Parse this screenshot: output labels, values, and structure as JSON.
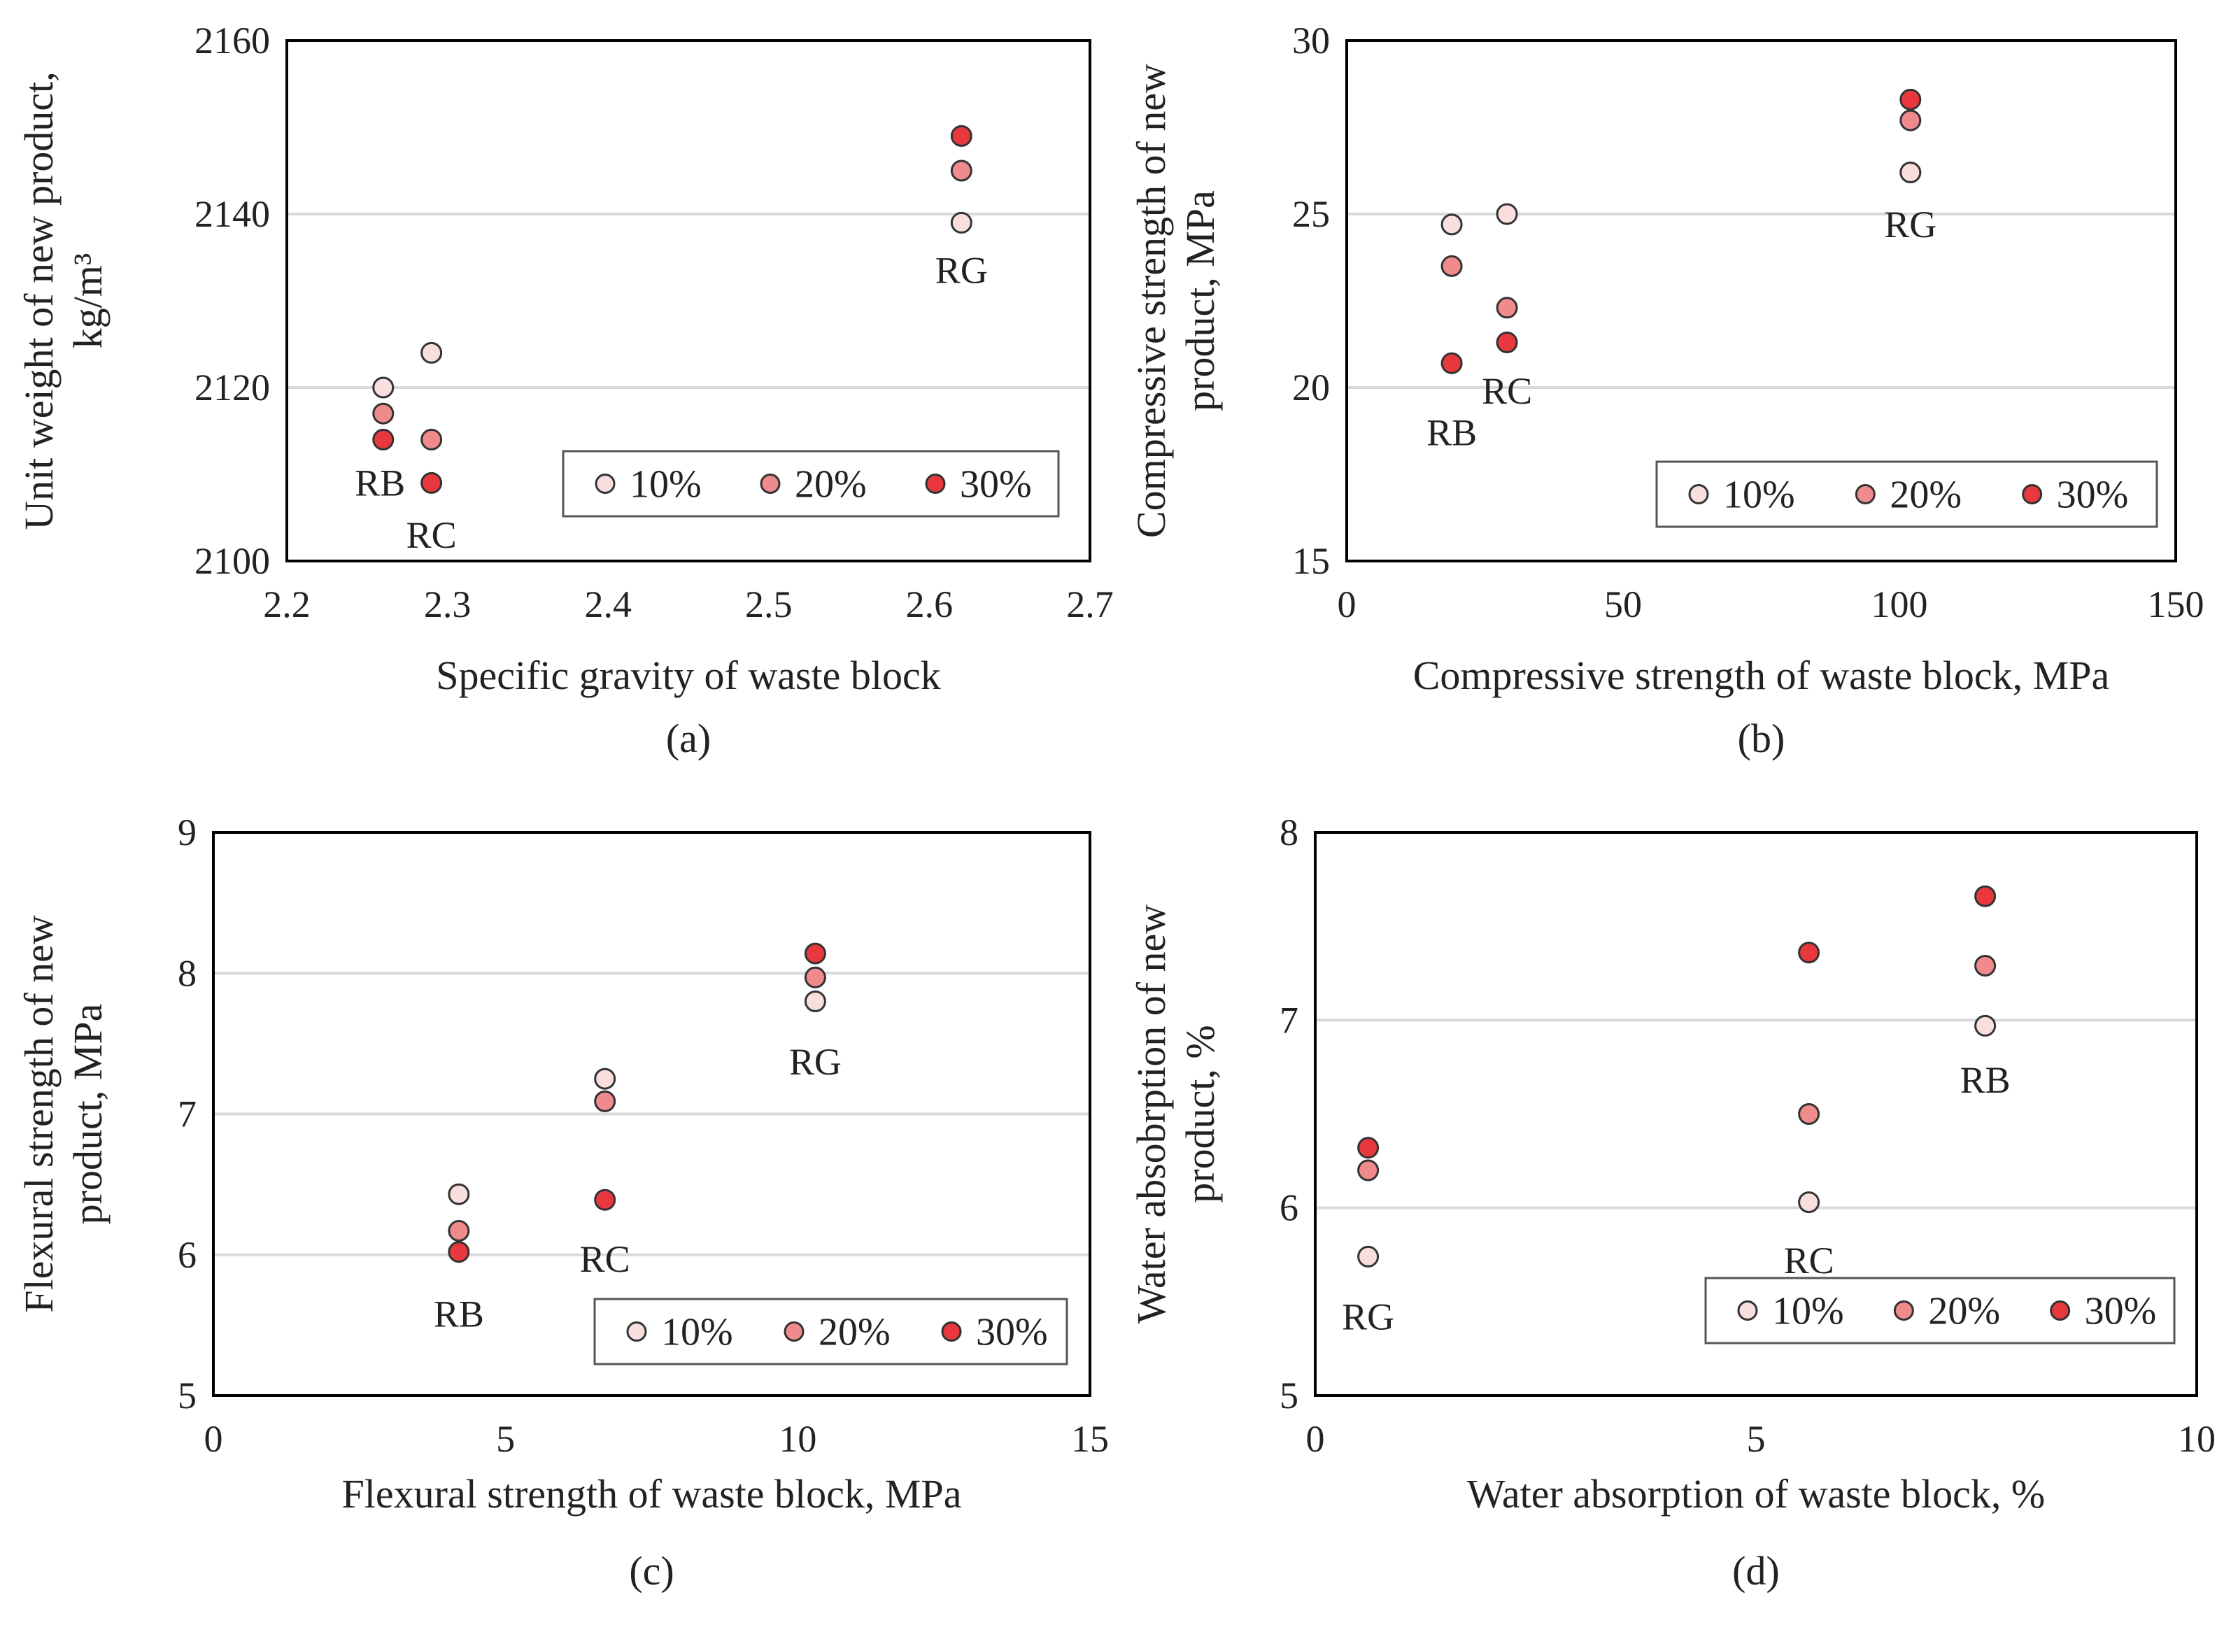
{
  "colors": {
    "10%": "#f9dede",
    "20%": "#ef8a8d",
    "30%": "#e8383d",
    "grid": "#d9d9d9",
    "frame": "#000000",
    "marker_edge": "#333333"
  },
  "chart_data": [
    {
      "type": "scatter",
      "caption": "(a)",
      "xlabel": "Specific gravity of waste block",
      "ylabel_lines": [
        "Unit weight of new product,",
        "kg/m³"
      ],
      "xlim": [
        2.2,
        2.7
      ],
      "ylim": [
        2100,
        2160
      ],
      "xticks": [
        2.2,
        2.3,
        2.4,
        2.5,
        2.6,
        2.7
      ],
      "xtick_labels": [
        "2.2",
        "2.3",
        "2.4",
        "2.5",
        "2.6",
        "2.7"
      ],
      "yticks": [
        2100,
        2120,
        2140,
        2160
      ],
      "ytick_labels": [
        "2100",
        "2120",
        "2140",
        "2160"
      ],
      "gridlines": [
        2120,
        2140
      ],
      "legend": {
        "position": "bottom-right",
        "entries": [
          "10%",
          "20%",
          "30%"
        ]
      },
      "series": [
        {
          "name": "10%",
          "points": [
            {
              "x": 2.26,
              "y": 2120
            },
            {
              "x": 2.29,
              "y": 2124
            },
            {
              "x": 2.62,
              "y": 2139
            }
          ]
        },
        {
          "name": "20%",
          "points": [
            {
              "x": 2.26,
              "y": 2117
            },
            {
              "x": 2.29,
              "y": 2114
            },
            {
              "x": 2.62,
              "y": 2145
            }
          ]
        },
        {
          "name": "30%",
          "points": [
            {
              "x": 2.26,
              "y": 2114
            },
            {
              "x": 2.29,
              "y": 2109
            },
            {
              "x": 2.62,
              "y": 2149
            }
          ]
        }
      ],
      "annotations": [
        {
          "text": "RB",
          "x": 2.258,
          "y": 2109
        },
        {
          "text": "RC",
          "x": 2.29,
          "y": 2103
        },
        {
          "text": "RG",
          "x": 2.62,
          "y": 2133.5
        }
      ]
    },
    {
      "type": "scatter",
      "caption": "(b)",
      "xlabel": "Compressive strength of waste block, MPa",
      "ylabel_lines": [
        "Compressive strength of new",
        "product, MPa"
      ],
      "xlim": [
        0,
        150
      ],
      "ylim": [
        15,
        30
      ],
      "xticks": [
        0,
        50,
        100,
        150
      ],
      "xtick_labels": [
        "0",
        "50",
        "100",
        "150"
      ],
      "yticks": [
        15,
        20,
        25,
        30
      ],
      "ytick_labels": [
        "15",
        "20",
        "25",
        "30"
      ],
      "gridlines": [
        20,
        25
      ],
      "legend": {
        "position": "bottom-right",
        "entries": [
          "10%",
          "20%",
          "30%"
        ]
      },
      "series": [
        {
          "name": "10%",
          "points": [
            {
              "x": 19,
              "y": 24.7
            },
            {
              "x": 29,
              "y": 25.0
            },
            {
              "x": 102,
              "y": 26.2
            }
          ]
        },
        {
          "name": "20%",
          "points": [
            {
              "x": 19,
              "y": 23.5
            },
            {
              "x": 29,
              "y": 22.3
            },
            {
              "x": 102,
              "y": 27.7
            }
          ]
        },
        {
          "name": "30%",
          "points": [
            {
              "x": 19,
              "y": 20.7
            },
            {
              "x": 29,
              "y": 21.3
            },
            {
              "x": 102,
              "y": 28.3
            }
          ]
        }
      ],
      "annotations": [
        {
          "text": "RB",
          "x": 19,
          "y": 18.7
        },
        {
          "text": "RC",
          "x": 29,
          "y": 19.9
        },
        {
          "text": "RG",
          "x": 102,
          "y": 24.7
        }
      ]
    },
    {
      "type": "scatter",
      "caption": "(c)",
      "xlabel": "Flexural strength of waste block, MPa",
      "ylabel_lines": [
        "Flexural strength of new",
        "product, MPa"
      ],
      "xlim": [
        0,
        15
      ],
      "ylim": [
        5,
        9
      ],
      "xticks": [
        0,
        5,
        10,
        15
      ],
      "xtick_labels": [
        "0",
        "5",
        "10",
        "15"
      ],
      "yticks": [
        5,
        6,
        7,
        8,
        9
      ],
      "ytick_labels": [
        "5",
        "6",
        "7",
        "8",
        "9"
      ],
      "gridlines": [
        6,
        7,
        8
      ],
      "legend": {
        "position": "bottom-right",
        "entries": [
          "10%",
          "20%",
          "30%"
        ]
      },
      "series": [
        {
          "name": "10%",
          "points": [
            {
              "x": 4.2,
              "y": 6.43
            },
            {
              "x": 6.7,
              "y": 7.25
            },
            {
              "x": 10.3,
              "y": 7.8
            }
          ]
        },
        {
          "name": "20%",
          "points": [
            {
              "x": 4.2,
              "y": 6.17
            },
            {
              "x": 6.7,
              "y": 7.09
            },
            {
              "x": 10.3,
              "y": 7.97
            }
          ]
        },
        {
          "name": "30%",
          "points": [
            {
              "x": 4.2,
              "y": 6.02
            },
            {
              "x": 6.7,
              "y": 6.39
            },
            {
              "x": 10.3,
              "y": 8.14
            }
          ]
        }
      ],
      "annotations": [
        {
          "text": "RB",
          "x": 4.2,
          "y": 5.58
        },
        {
          "text": "RC",
          "x": 6.7,
          "y": 5.97
        },
        {
          "text": "RG",
          "x": 10.3,
          "y": 7.37
        }
      ]
    },
    {
      "type": "scatter",
      "caption": "(d)",
      "xlabel": "Water absorption of waste block, %",
      "ylabel_lines": [
        "Water absobrption of new",
        "product, %"
      ],
      "xlim": [
        0,
        10
      ],
      "ylim": [
        5,
        8
      ],
      "xticks": [
        0,
        5,
        10
      ],
      "xtick_labels": [
        "0",
        "5",
        "10"
      ],
      "yticks": [
        5,
        6,
        7,
        8
      ],
      "ytick_labels": [
        "5",
        "6",
        "7",
        "8"
      ],
      "gridlines": [
        6,
        7
      ],
      "legend": {
        "position": "bottom-right",
        "entries": [
          "10%",
          "20%",
          "30%"
        ]
      },
      "series": [
        {
          "name": "10%",
          "points": [
            {
              "x": 0.6,
              "y": 5.74
            },
            {
              "x": 5.6,
              "y": 6.03
            },
            {
              "x": 7.6,
              "y": 6.97
            }
          ]
        },
        {
          "name": "20%",
          "points": [
            {
              "x": 0.6,
              "y": 6.2
            },
            {
              "x": 5.6,
              "y": 6.5
            },
            {
              "x": 7.6,
              "y": 7.29
            }
          ]
        },
        {
          "name": "30%",
          "points": [
            {
              "x": 0.6,
              "y": 6.32
            },
            {
              "x": 5.6,
              "y": 7.36
            },
            {
              "x": 7.6,
              "y": 7.66
            }
          ]
        }
      ],
      "annotations": [
        {
          "text": "RG",
          "x": 0.6,
          "y": 5.42
        },
        {
          "text": "RC",
          "x": 5.6,
          "y": 5.72
        },
        {
          "text": "RB",
          "x": 7.6,
          "y": 6.68
        }
      ]
    }
  ]
}
